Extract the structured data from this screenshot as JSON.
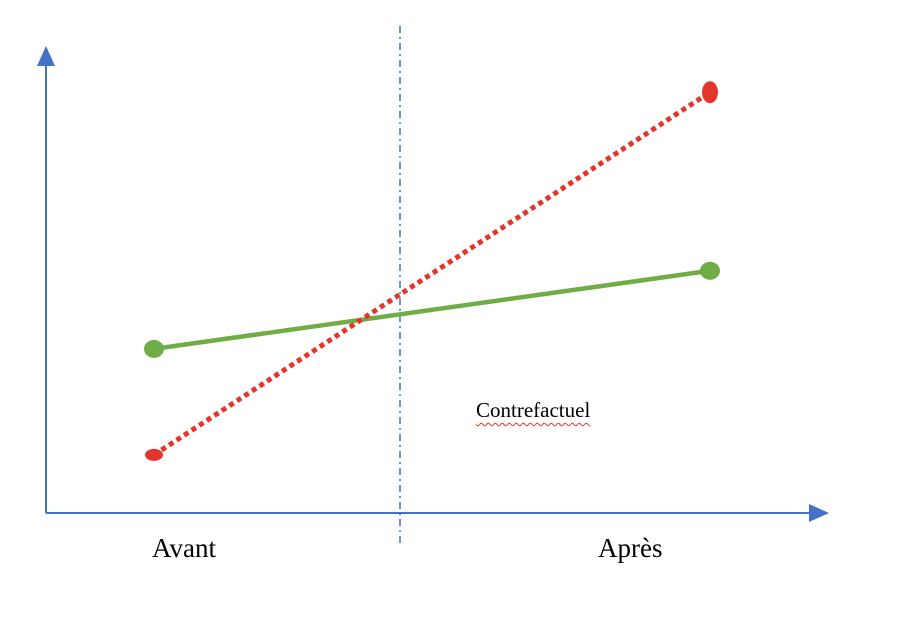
{
  "labels": {
    "before": "Avant",
    "after": "Après",
    "counterfactual": "Contrefactuel"
  },
  "colors": {
    "axis": "#4472c4",
    "divider": "#4472c4",
    "observed_line": "#70ad47",
    "counterfactual_line": "#e3352b",
    "spellcheck_underline": "#e3352b"
  },
  "chart_data": {
    "type": "line",
    "categories": [
      "Avant",
      "Après"
    ],
    "series": [
      {
        "style": "solid",
        "color": "#70ad47",
        "values": [
          0.45,
          0.59
        ]
      },
      {
        "style": "dotted",
        "color": "#e3352b",
        "values": [
          0.26,
          0.91
        ]
      }
    ],
    "ylim": [
      0,
      1
    ],
    "grid": false,
    "vertical_divider": "dash-dot, between Avant and Après",
    "axis_arrows": true
  }
}
